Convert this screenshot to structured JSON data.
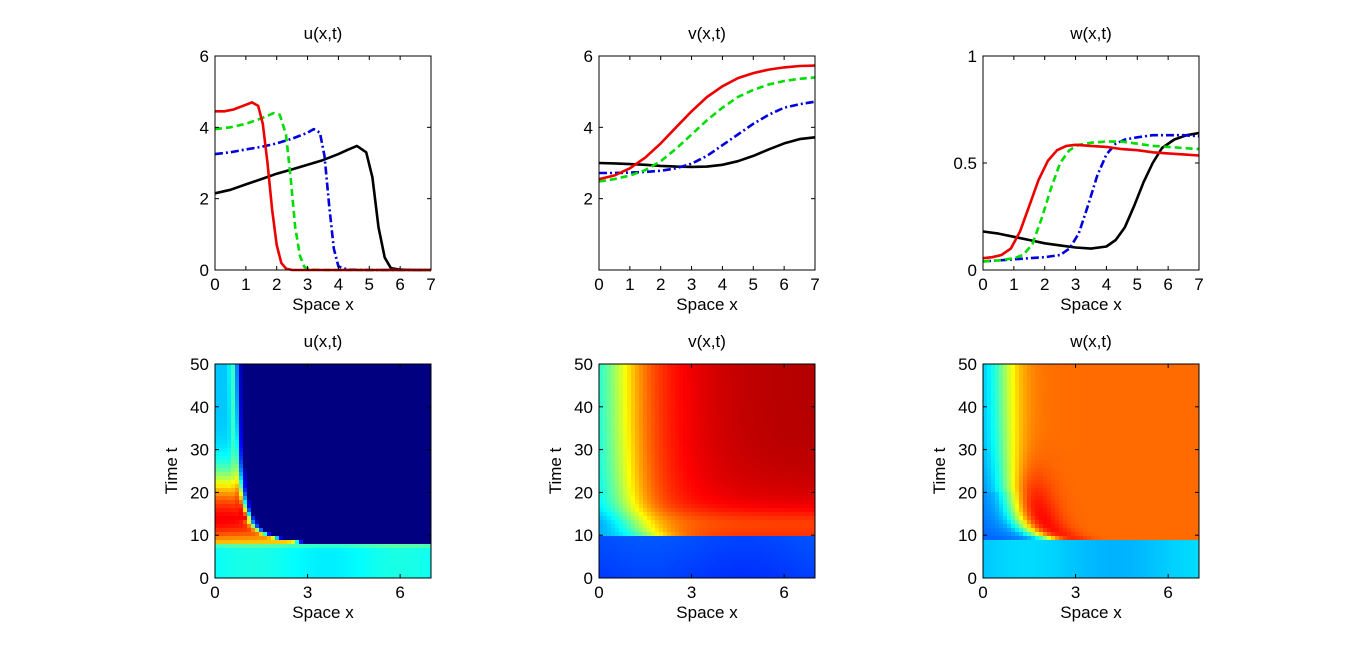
{
  "colors": {
    "black": "#000000",
    "blue": "#0000dd",
    "green": "#00dd00",
    "red": "#ee0000"
  },
  "colormap": "jet",
  "chart_data": [
    {
      "type": "line",
      "title": "u(x,t)",
      "xlabel": "Space x",
      "ylabel": "",
      "xlim": [
        0,
        7
      ],
      "ylim": [
        0,
        6
      ],
      "xticks": [
        0,
        1,
        2,
        3,
        4,
        5,
        6,
        7
      ],
      "yticks": [
        0,
        2,
        4,
        6
      ],
      "grid": false,
      "series": [
        {
          "color": "black",
          "style": "solid",
          "x": [
            0,
            0.5,
            1,
            1.5,
            2,
            2.5,
            3,
            3.5,
            4,
            4.3,
            4.6,
            4.9,
            5.1,
            5.3,
            5.5,
            5.7,
            6,
            6.5,
            7
          ],
          "y": [
            2.15,
            2.25,
            2.4,
            2.55,
            2.7,
            2.82,
            2.95,
            3.08,
            3.25,
            3.37,
            3.48,
            3.3,
            2.6,
            1.2,
            0.35,
            0.05,
            0.01,
            0.0,
            0.0
          ]
        },
        {
          "color": "blue",
          "style": "dashdot",
          "x": [
            0,
            0.5,
            1,
            1.5,
            2,
            2.5,
            3,
            3.2,
            3.4,
            3.55,
            3.7,
            3.85,
            4.0,
            4.3,
            5,
            6,
            7
          ],
          "y": [
            3.25,
            3.3,
            3.38,
            3.45,
            3.55,
            3.68,
            3.85,
            3.95,
            3.85,
            3.2,
            1.8,
            0.6,
            0.1,
            0.01,
            0.0,
            0.0,
            0.0
          ]
        },
        {
          "color": "green",
          "style": "dashed",
          "x": [
            0,
            0.5,
            1,
            1.5,
            1.9,
            2.1,
            2.3,
            2.45,
            2.6,
            2.75,
            2.9,
            3.1,
            3.5,
            4,
            5,
            6,
            7
          ],
          "y": [
            3.95,
            4.0,
            4.1,
            4.25,
            4.4,
            4.35,
            3.8,
            2.6,
            1.2,
            0.4,
            0.08,
            0.01,
            0.0,
            0.0,
            0.0,
            0.0,
            0.0
          ]
        },
        {
          "color": "red",
          "style": "solid",
          "x": [
            0,
            0.3,
            0.6,
            0.9,
            1.2,
            1.4,
            1.55,
            1.7,
            1.85,
            2.0,
            2.15,
            2.3,
            2.5,
            3,
            4,
            5,
            6,
            7
          ],
          "y": [
            4.45,
            4.45,
            4.5,
            4.6,
            4.7,
            4.6,
            4.1,
            3.0,
            1.7,
            0.7,
            0.2,
            0.04,
            0.0,
            0.0,
            0.0,
            0.0,
            0.0,
            0.0
          ]
        }
      ]
    },
    {
      "type": "line",
      "title": "v(x,t)",
      "xlabel": "Space x",
      "ylabel": "",
      "xlim": [
        0,
        7
      ],
      "ylim": [
        0,
        6
      ],
      "xticks": [
        0,
        1,
        2,
        3,
        4,
        5,
        6,
        7
      ],
      "yticks": [
        2,
        4,
        6
      ],
      "grid": false,
      "series": [
        {
          "color": "black",
          "style": "solid",
          "x": [
            0,
            0.5,
            1,
            1.5,
            2,
            2.5,
            3,
            3.5,
            4,
            4.5,
            5,
            5.5,
            6,
            6.5,
            7
          ],
          "y": [
            3.0,
            2.99,
            2.97,
            2.95,
            2.92,
            2.9,
            2.89,
            2.9,
            2.95,
            3.05,
            3.2,
            3.38,
            3.55,
            3.67,
            3.72
          ]
        },
        {
          "color": "blue",
          "style": "dashdot",
          "x": [
            0,
            0.5,
            1,
            1.5,
            2,
            2.5,
            3,
            3.5,
            4,
            4.5,
            5,
            5.5,
            6,
            6.5,
            7
          ],
          "y": [
            2.72,
            2.72,
            2.73,
            2.75,
            2.78,
            2.85,
            2.98,
            3.2,
            3.5,
            3.8,
            4.1,
            4.35,
            4.55,
            4.65,
            4.72
          ]
        },
        {
          "color": "green",
          "style": "dashed",
          "x": [
            0,
            0.5,
            1,
            1.5,
            2,
            2.5,
            3,
            3.5,
            4,
            4.5,
            5,
            5.5,
            6,
            6.5,
            7
          ],
          "y": [
            2.48,
            2.55,
            2.65,
            2.8,
            3.05,
            3.4,
            3.8,
            4.2,
            4.55,
            4.85,
            5.05,
            5.2,
            5.3,
            5.36,
            5.4
          ]
        },
        {
          "color": "red",
          "style": "solid",
          "x": [
            0,
            0.5,
            1,
            1.5,
            2,
            2.5,
            3,
            3.5,
            4,
            4.5,
            5,
            5.5,
            6,
            6.5,
            7
          ],
          "y": [
            2.55,
            2.65,
            2.85,
            3.15,
            3.55,
            4.0,
            4.45,
            4.85,
            5.15,
            5.38,
            5.52,
            5.62,
            5.68,
            5.72,
            5.73
          ]
        }
      ]
    },
    {
      "type": "line",
      "title": "w(x,t)",
      "xlabel": "Space x",
      "ylabel": "",
      "xlim": [
        0,
        7
      ],
      "ylim": [
        0,
        1
      ],
      "xticks": [
        0,
        1,
        2,
        3,
        4,
        5,
        6,
        7
      ],
      "yticks": [
        0,
        0.5,
        1
      ],
      "grid": false,
      "series": [
        {
          "color": "black",
          "style": "solid",
          "x": [
            0,
            0.5,
            1,
            1.5,
            2,
            2.5,
            3,
            3.5,
            4,
            4.3,
            4.6,
            4.9,
            5.2,
            5.5,
            5.8,
            6.2,
            6.6,
            7
          ],
          "y": [
            0.18,
            0.17,
            0.155,
            0.14,
            0.125,
            0.115,
            0.105,
            0.1,
            0.11,
            0.14,
            0.2,
            0.3,
            0.41,
            0.5,
            0.57,
            0.61,
            0.63,
            0.64
          ]
        },
        {
          "color": "blue",
          "style": "dashdot",
          "x": [
            0,
            0.5,
            1,
            1.5,
            2,
            2.5,
            2.8,
            3.1,
            3.4,
            3.7,
            4.0,
            4.3,
            4.6,
            5,
            5.5,
            6,
            6.5,
            7
          ],
          "y": [
            0.04,
            0.045,
            0.05,
            0.055,
            0.06,
            0.07,
            0.1,
            0.17,
            0.3,
            0.44,
            0.54,
            0.59,
            0.61,
            0.62,
            0.63,
            0.63,
            0.63,
            0.625
          ]
        },
        {
          "color": "green",
          "style": "dashed",
          "x": [
            0,
            0.5,
            1,
            1.3,
            1.6,
            1.9,
            2.2,
            2.5,
            2.8,
            3.1,
            3.5,
            4,
            4.5,
            5,
            5.5,
            6,
            6.5,
            7
          ],
          "y": [
            0.04,
            0.045,
            0.055,
            0.07,
            0.12,
            0.24,
            0.38,
            0.5,
            0.56,
            0.585,
            0.595,
            0.6,
            0.6,
            0.59,
            0.58,
            0.575,
            0.57,
            0.565
          ]
        },
        {
          "color": "red",
          "style": "solid",
          "x": [
            0,
            0.3,
            0.6,
            0.9,
            1.2,
            1.5,
            1.8,
            2.1,
            2.4,
            2.7,
            3.0,
            3.5,
            4,
            4.5,
            5,
            5.5,
            6,
            6.5,
            7
          ],
          "y": [
            0.055,
            0.06,
            0.07,
            0.1,
            0.18,
            0.3,
            0.42,
            0.51,
            0.56,
            0.58,
            0.585,
            0.58,
            0.575,
            0.565,
            0.56,
            0.55,
            0.545,
            0.54,
            0.535
          ]
        }
      ]
    },
    {
      "type": "heatmap",
      "title": "u(x,t)",
      "xlabel": "Space x",
      "ylabel": "Time t",
      "xlim": [
        0,
        7
      ],
      "ylim": [
        0,
        50
      ],
      "xticks": [
        0,
        3,
        6
      ],
      "yticks": [
        0,
        10,
        20,
        30,
        40,
        50
      ],
      "grid": false
    },
    {
      "type": "heatmap",
      "title": "v(x,t)",
      "xlabel": "Space x",
      "ylabel": "Time t",
      "xlim": [
        0,
        7
      ],
      "ylim": [
        0,
        50
      ],
      "xticks": [
        0,
        3,
        6
      ],
      "yticks": [
        0,
        10,
        20,
        30,
        40,
        50
      ],
      "grid": false
    },
    {
      "type": "heatmap",
      "title": "w(x,t)",
      "xlabel": "Space x",
      "ylabel": "Time t",
      "xlim": [
        0,
        7
      ],
      "ylim": [
        0,
        50
      ],
      "xticks": [
        0,
        3,
        6
      ],
      "yticks": [
        0,
        10,
        20,
        30,
        40,
        50
      ],
      "grid": false
    }
  ]
}
